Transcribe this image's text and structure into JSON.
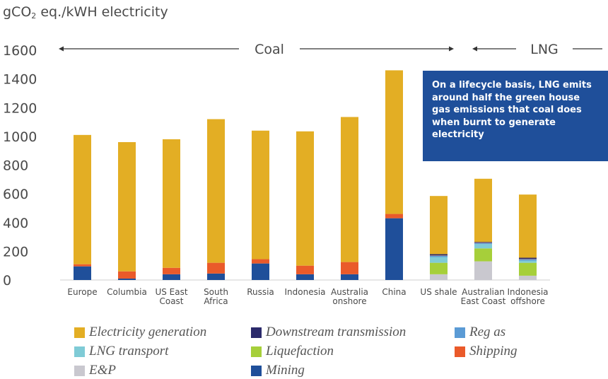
{
  "chart_data": {
    "type": "bar",
    "stacked": true,
    "title": "",
    "ylabel_main": "gCO",
    "ylabel_sub": "2",
    "ylabel_rest": " eq./kWH electricity",
    "ylim": [
      0,
      1600
    ],
    "yticks": [
      0,
      200,
      400,
      600,
      800,
      1000,
      1200,
      1400,
      1600
    ],
    "categories": [
      [
        "Europe"
      ],
      [
        "Columbia"
      ],
      [
        "US East",
        "Coast"
      ],
      [
        "South",
        "Africa"
      ],
      [
        "Russia"
      ],
      [
        "Indonesia"
      ],
      [
        "Australia",
        "onshore"
      ],
      [
        "China"
      ],
      [
        "US shale"
      ],
      [
        "Australian",
        "East Coast"
      ],
      [
        "Indonesia",
        "offshore"
      ]
    ],
    "series": [
      {
        "name": "E&P",
        "color": "#c9c8cf",
        "values": [
          0,
          0,
          0,
          0,
          0,
          0,
          0,
          0,
          40,
          130,
          30
        ]
      },
      {
        "name": "Mining",
        "color": "#1f4f9a",
        "values": [
          95,
          10,
          40,
          45,
          115,
          40,
          40,
          430,
          0,
          0,
          0
        ]
      },
      {
        "name": "Liquefaction",
        "color": "#a6cf3a",
        "values": [
          0,
          0,
          0,
          0,
          0,
          0,
          0,
          0,
          80,
          90,
          90
        ]
      },
      {
        "name": "LNG transport",
        "color": "#7fcbd6",
        "values": [
          0,
          0,
          0,
          0,
          0,
          0,
          0,
          0,
          40,
          30,
          15
        ]
      },
      {
        "name": "Reg as",
        "color": "#5b9bd5",
        "values": [
          0,
          0,
          0,
          0,
          0,
          0,
          0,
          0,
          10,
          8,
          10
        ]
      },
      {
        "name": "Shipping",
        "color": "#ea5a2a",
        "values": [
          15,
          50,
          45,
          75,
          30,
          60,
          85,
          30,
          2,
          2,
          2
        ]
      },
      {
        "name": "Downstream transmission",
        "color": "#2b2a6b",
        "values": [
          0,
          0,
          0,
          0,
          0,
          0,
          0,
          0,
          8,
          5,
          8
        ]
      },
      {
        "name": "Electricity generation",
        "color": "#e3ae24",
        "values": [
          900,
          900,
          895,
          1000,
          895,
          935,
          1010,
          1000,
          405,
          440,
          440
        ]
      }
    ],
    "annotations": {
      "coal": "Coal",
      "lng": "LNG"
    }
  },
  "callout": {
    "text": "On a lifecycle basis, LNG emits around half the green house gas emissions that coal does when burnt to generate electricity"
  },
  "legend": {
    "items": [
      {
        "label": "Electricity generation",
        "color": "#e3ae24"
      },
      {
        "label": "Downstream transmission",
        "color": "#2b2a6b"
      },
      {
        "label": "Reg as",
        "color": "#5b9bd5"
      },
      {
        "label": "LNG transport",
        "color": "#7fcbd6"
      },
      {
        "label": "Liquefaction",
        "color": "#a6cf3a"
      },
      {
        "label": "Shipping",
        "color": "#ea5a2a"
      },
      {
        "label": "E&P",
        "color": "#c9c8cf"
      },
      {
        "label": "Mining",
        "color": "#1f4f9a"
      }
    ]
  }
}
